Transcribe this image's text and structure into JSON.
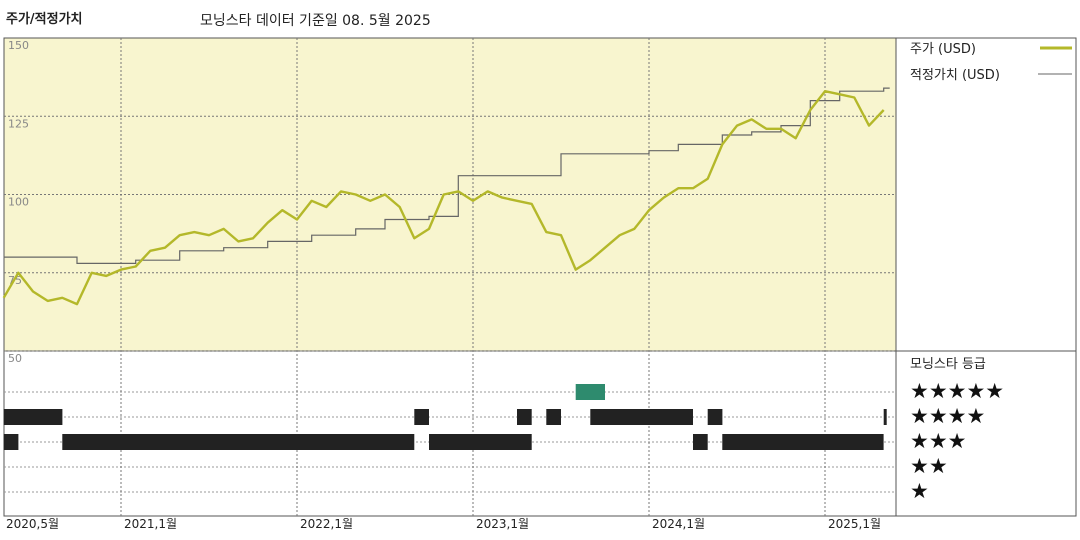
{
  "header": {
    "title": "주가/적정가치",
    "subtitle": "모닝스타 데이터 기준일 08. 5월 2025"
  },
  "legend": {
    "price_label": "주가 (USD)",
    "fair_label": "적정가치 (USD)",
    "rating_title": "모닝스타 등급"
  },
  "colors": {
    "price": "#b4b82a",
    "fair": "#666666",
    "panel": "#f8f5cf",
    "rating_bar": "#222222",
    "rating_highlight": "#2e8b6e"
  },
  "chart_data": {
    "type": "line",
    "ylim": [
      50,
      150
    ],
    "yticks": [
      "150",
      "125",
      "100",
      "75",
      "50"
    ],
    "xticks": [
      "2020,5월",
      "2021,1월",
      "2022,1월",
      "2023,1월",
      "2024,1월",
      "2025,1월"
    ],
    "xtick_dates": [
      "2020-05",
      "2021-01",
      "2022-01",
      "2023-01",
      "2024-01",
      "2025-01"
    ],
    "series": [
      {
        "name": "주가 (USD)",
        "points": [
          [
            "2020-05",
            67
          ],
          [
            "2020-06",
            75
          ],
          [
            "2020-07",
            69
          ],
          [
            "2020-08",
            66
          ],
          [
            "2020-09",
            67
          ],
          [
            "2020-10",
            65
          ],
          [
            "2020-11",
            75
          ],
          [
            "2020-12",
            74
          ],
          [
            "2021-01",
            76
          ],
          [
            "2021-02",
            77
          ],
          [
            "2021-03",
            82
          ],
          [
            "2021-04",
            83
          ],
          [
            "2021-05",
            87
          ],
          [
            "2021-06",
            88
          ],
          [
            "2021-07",
            87
          ],
          [
            "2021-08",
            89
          ],
          [
            "2021-09",
            85
          ],
          [
            "2021-10",
            86
          ],
          [
            "2021-11",
            91
          ],
          [
            "2021-12",
            95
          ],
          [
            "2022-01",
            92
          ],
          [
            "2022-02",
            98
          ],
          [
            "2022-03",
            96
          ],
          [
            "2022-04",
            101
          ],
          [
            "2022-05",
            100
          ],
          [
            "2022-06",
            98
          ],
          [
            "2022-07",
            100
          ],
          [
            "2022-08",
            96
          ],
          [
            "2022-09",
            86
          ],
          [
            "2022-10",
            89
          ],
          [
            "2022-11",
            100
          ],
          [
            "2022-12",
            101
          ],
          [
            "2023-01",
            98
          ],
          [
            "2023-02",
            101
          ],
          [
            "2023-03",
            99
          ],
          [
            "2023-04",
            98
          ],
          [
            "2023-05",
            97
          ],
          [
            "2023-06",
            88
          ],
          [
            "2023-07",
            87
          ],
          [
            "2023-08",
            76
          ],
          [
            "2023-09",
            79
          ],
          [
            "2023-10",
            83
          ],
          [
            "2023-11",
            87
          ],
          [
            "2023-12",
            89
          ],
          [
            "2024-01",
            95
          ],
          [
            "2024-02",
            99
          ],
          [
            "2024-03",
            102
          ],
          [
            "2024-04",
            102
          ],
          [
            "2024-05",
            105
          ],
          [
            "2024-06",
            116
          ],
          [
            "2024-07",
            122
          ],
          [
            "2024-08",
            124
          ],
          [
            "2024-09",
            121
          ],
          [
            "2024-10",
            121
          ],
          [
            "2024-11",
            118
          ],
          [
            "2024-12",
            127
          ],
          [
            "2025-01",
            133
          ],
          [
            "2025-02",
            132
          ],
          [
            "2025-03",
            131
          ],
          [
            "2025-04",
            122
          ],
          [
            "2025-05",
            127
          ]
        ]
      },
      {
        "name": "적정가치 (USD)",
        "points": [
          [
            "2020-05",
            80
          ],
          [
            "2020-10",
            78
          ],
          [
            "2021-02",
            79
          ],
          [
            "2021-05",
            82
          ],
          [
            "2021-08",
            83
          ],
          [
            "2021-11",
            85
          ],
          [
            "2022-02",
            87
          ],
          [
            "2022-05",
            89
          ],
          [
            "2022-07",
            92
          ],
          [
            "2022-10",
            93
          ],
          [
            "2022-12",
            106
          ],
          [
            "2023-03",
            106
          ],
          [
            "2023-05",
            106
          ],
          [
            "2023-07",
            113
          ],
          [
            "2023-10",
            113
          ],
          [
            "2024-01",
            114
          ],
          [
            "2024-03",
            116
          ],
          [
            "2024-06",
            119
          ],
          [
            "2024-08",
            120
          ],
          [
            "2024-10",
            122
          ],
          [
            "2024-12",
            130
          ],
          [
            "2025-02",
            133
          ],
          [
            "2025-05",
            134
          ]
        ]
      }
    ],
    "ratings": {
      "levels": [
        5,
        4,
        3,
        2,
        1
      ],
      "labels": [
        "★★★★★",
        "★★★★",
        "★★★",
        "★★",
        "★"
      ],
      "periods": [
        {
          "stars": 4,
          "start": "2020-05",
          "end": "2020-09"
        },
        {
          "stars": 3,
          "start": "2020-05",
          "end": "2020-06"
        },
        {
          "stars": 3,
          "start": "2020-09",
          "end": "2022-09"
        },
        {
          "stars": 4,
          "start": "2022-09",
          "end": "2022-10"
        },
        {
          "stars": 3,
          "start": "2022-10",
          "end": "2023-05"
        },
        {
          "stars": 4,
          "start": "2023-04",
          "end": "2023-05"
        },
        {
          "stars": 4,
          "start": "2023-06",
          "end": "2023-07"
        },
        {
          "stars": 4,
          "start": "2023-09",
          "end": "2024-04"
        },
        {
          "stars": 5,
          "start": "2023-08",
          "end": "2023-10"
        },
        {
          "stars": 3,
          "start": "2024-04",
          "end": "2024-05"
        },
        {
          "stars": 4,
          "start": "2024-05",
          "end": "2024-06"
        },
        {
          "stars": 3,
          "start": "2024-06",
          "end": "2025-05"
        },
        {
          "stars": 4,
          "start": "2025-05",
          "end": "2025-05"
        }
      ]
    }
  }
}
